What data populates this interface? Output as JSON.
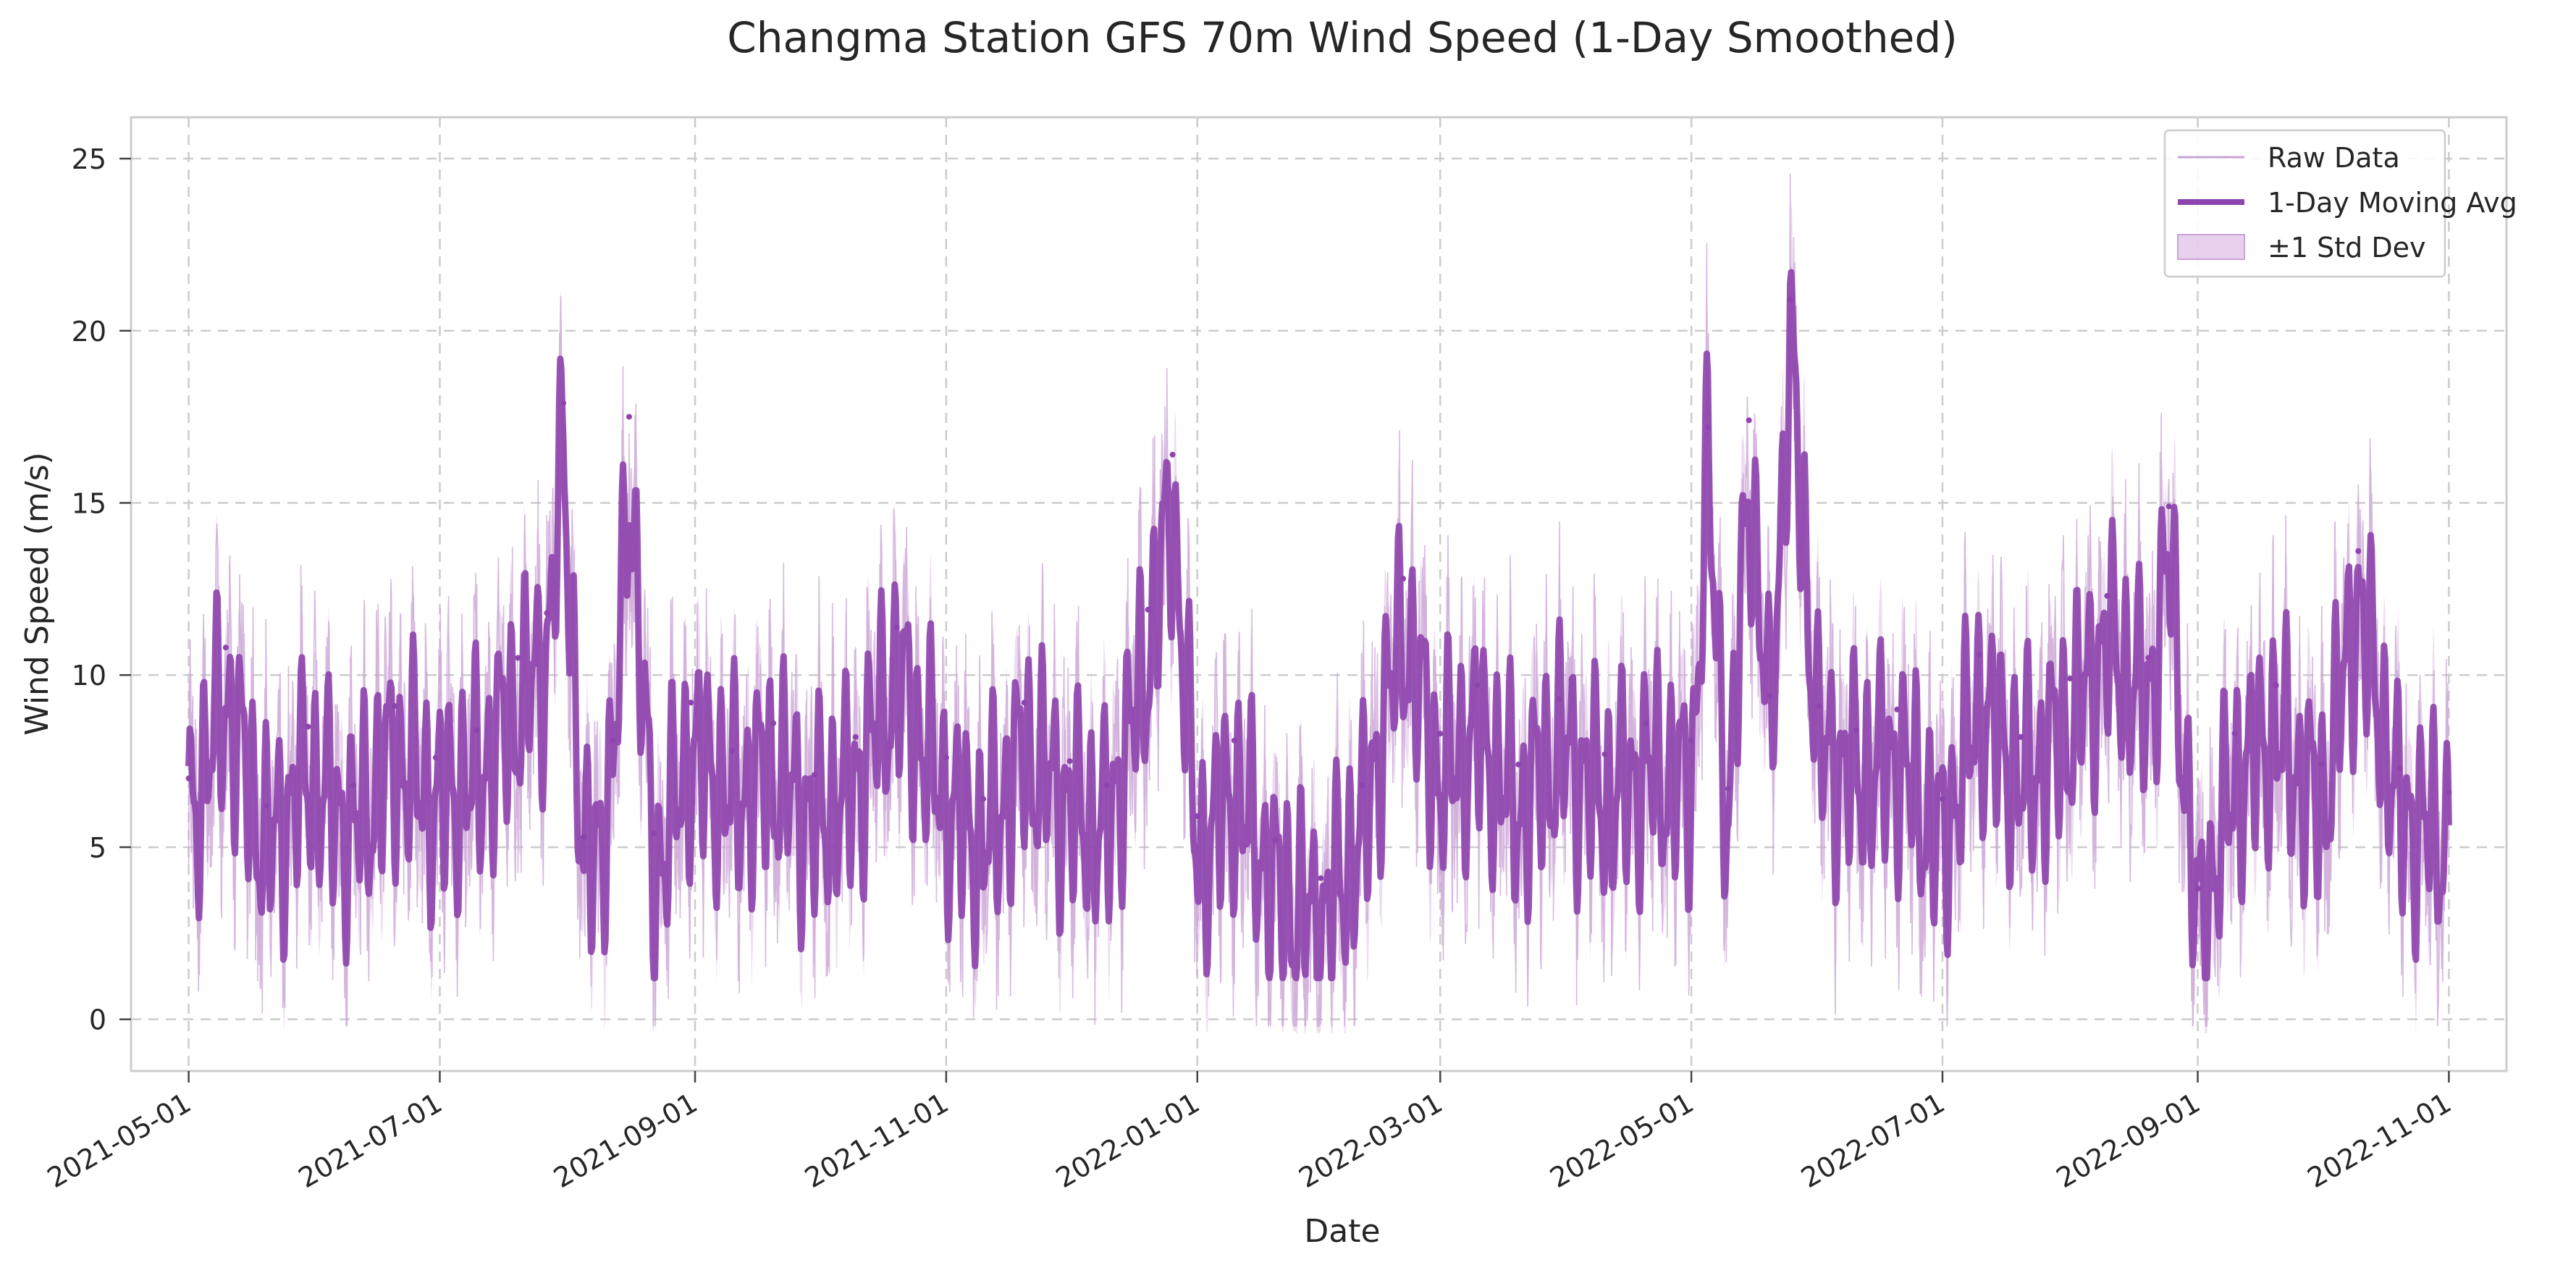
{
  "chart_data": {
    "type": "line",
    "title": "Changma Station GFS 70m Wind Speed (1-Day Smoothed)",
    "xlabel": "Date",
    "ylabel": "Wind Speed (m/s)",
    "x_type": "date",
    "xlim": [
      "2021-04-17",
      "2022-11-15"
    ],
    "ylim": [
      -1.5,
      26.2
    ],
    "xticks": [
      "2021-05-01",
      "2021-07-01",
      "2021-09-01",
      "2021-11-01",
      "2022-01-01",
      "2022-03-01",
      "2022-05-01",
      "2022-07-01",
      "2022-09-01",
      "2022-11-01"
    ],
    "yticks": [
      0,
      5,
      10,
      15,
      20,
      25
    ],
    "grid": true,
    "legend_position": "top-right",
    "colors": {
      "raw": "#c9a3d4",
      "band": "#d7b3df",
      "avg": "#8e44ad",
      "grid": "#cccccc",
      "axes": "#cccccc"
    },
    "series": [
      {
        "name": "1-Day Moving Avg",
        "role": "moving_average",
        "x": [
          "2021-05-01",
          "2021-05-10",
          "2021-05-20",
          "2021-05-30",
          "2021-06-10",
          "2021-06-20",
          "2021-06-30",
          "2021-07-10",
          "2021-07-20",
          "2021-07-27",
          "2021-07-31",
          "2021-08-05",
          "2021-08-12",
          "2021-08-16",
          "2021-08-22",
          "2021-08-31",
          "2021-09-10",
          "2021-09-20",
          "2021-09-30",
          "2021-10-10",
          "2021-10-20",
          "2021-11-01",
          "2021-11-10",
          "2021-11-20",
          "2021-12-01",
          "2021-12-10",
          "2021-12-20",
          "2021-12-26",
          "2022-01-01",
          "2022-01-10",
          "2022-01-20",
          "2022-01-31",
          "2022-02-10",
          "2022-02-20",
          "2022-03-01",
          "2022-03-10",
          "2022-03-20",
          "2022-03-30",
          "2022-04-10",
          "2022-04-20",
          "2022-05-01",
          "2022-05-05",
          "2022-05-10",
          "2022-05-15",
          "2022-05-20",
          "2022-05-25",
          "2022-06-01",
          "2022-06-10",
          "2022-06-20",
          "2022-07-01",
          "2022-07-10",
          "2022-07-20",
          "2022-08-01",
          "2022-08-10",
          "2022-08-20",
          "2022-08-25",
          "2022-09-01",
          "2022-09-10",
          "2022-09-20",
          "2022-10-01",
          "2022-10-10",
          "2022-10-20",
          "2022-11-01"
        ],
        "y": [
          7.0,
          10.8,
          6.2,
          8.5,
          6.8,
          9.1,
          7.6,
          8.4,
          10.5,
          11.8,
          17.9,
          5.3,
          8.1,
          17.5,
          5.4,
          9.2,
          7.8,
          8.6,
          7.1,
          8.2,
          11.4,
          7.6,
          6.4,
          9.2,
          7.5,
          6.8,
          11.9,
          16.4,
          5.9,
          8.1,
          5.2,
          4.1,
          6.8,
          12.8,
          8.3,
          9.7,
          7.4,
          9.3,
          7.7,
          8.6,
          8.1,
          17.2,
          6.7,
          17.4,
          9.4,
          20.9,
          9.1,
          8.4,
          9.0,
          6.4,
          10.6,
          8.2,
          9.9,
          12.3,
          10.5,
          14.9,
          3.8,
          8.3,
          9.7,
          7.4,
          13.6,
          7.3,
          6.6
        ]
      },
      {
        "name": "Raw Data",
        "role": "raw"
      },
      {
        "name": "±1 Std Dev",
        "role": "band"
      }
    ]
  }
}
